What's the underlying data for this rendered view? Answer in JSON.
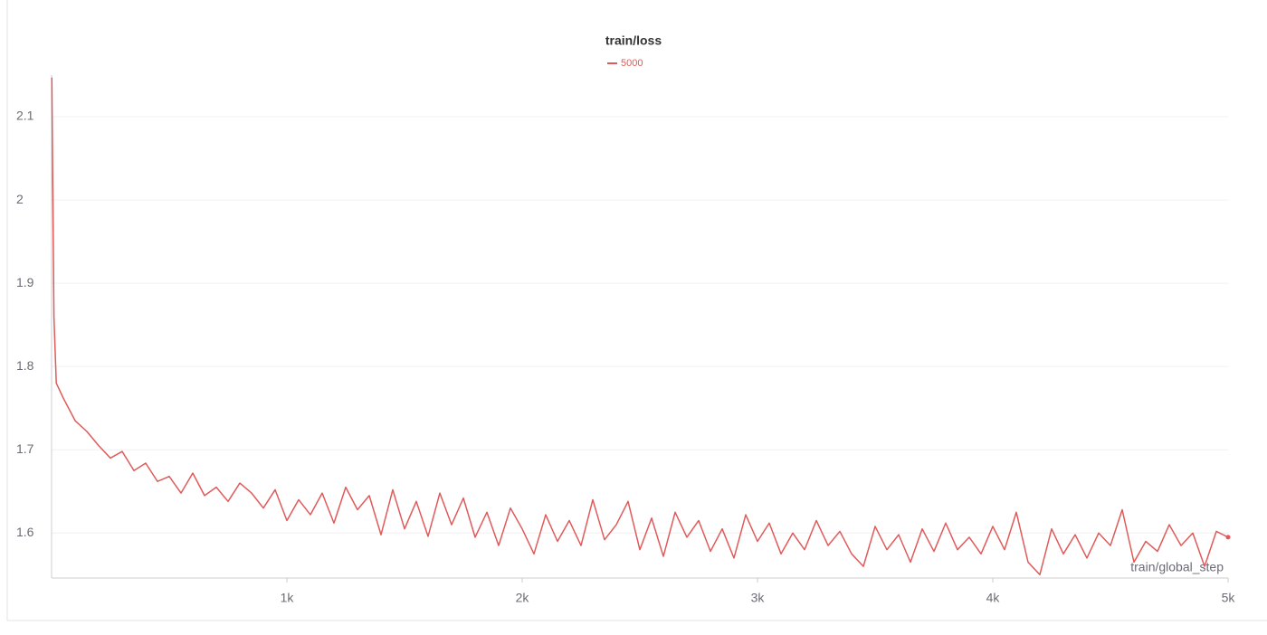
{
  "chart_data": {
    "type": "line",
    "title": "train/loss",
    "x_label": "train/global_step",
    "x": [
      1,
      10,
      20,
      50,
      100,
      150,
      200,
      250,
      300,
      350,
      400,
      450,
      500,
      550,
      600,
      650,
      700,
      750,
      800,
      850,
      900,
      950,
      1000,
      1050,
      1100,
      1150,
      1200,
      1250,
      1300,
      1350,
      1400,
      1450,
      1500,
      1550,
      1600,
      1650,
      1700,
      1750,
      1800,
      1850,
      1900,
      1950,
      2000,
      2050,
      2100,
      2150,
      2200,
      2250,
      2300,
      2350,
      2400,
      2450,
      2500,
      2550,
      2600,
      2650,
      2700,
      2750,
      2800,
      2850,
      2900,
      2950,
      3000,
      3050,
      3100,
      3150,
      3200,
      3250,
      3300,
      3350,
      3400,
      3450,
      3500,
      3550,
      3600,
      3650,
      3700,
      3750,
      3800,
      3850,
      3900,
      3950,
      4000,
      4050,
      4100,
      4150,
      4200,
      4250,
      4300,
      4350,
      4400,
      4450,
      4500,
      4550,
      4600,
      4650,
      4700,
      4750,
      4800,
      4850,
      4900,
      4950,
      5000
    ],
    "series": [
      {
        "name": "5000",
        "color": "#e05a5a",
        "values": [
          2.147,
          1.86,
          1.78,
          1.762,
          1.735,
          1.722,
          1.705,
          1.69,
          1.698,
          1.675,
          1.684,
          1.662,
          1.668,
          1.648,
          1.672,
          1.645,
          1.655,
          1.638,
          1.66,
          1.648,
          1.63,
          1.652,
          1.615,
          1.64,
          1.622,
          1.648,
          1.612,
          1.655,
          1.628,
          1.645,
          1.598,
          1.652,
          1.605,
          1.638,
          1.596,
          1.648,
          1.61,
          1.642,
          1.595,
          1.625,
          1.585,
          1.63,
          1.605,
          1.575,
          1.622,
          1.59,
          1.615,
          1.585,
          1.64,
          1.592,
          1.61,
          1.638,
          1.58,
          1.618,
          1.572,
          1.625,
          1.595,
          1.615,
          1.578,
          1.605,
          1.57,
          1.622,
          1.59,
          1.612,
          1.575,
          1.6,
          1.58,
          1.615,
          1.585,
          1.602,
          1.575,
          1.56,
          1.608,
          1.58,
          1.598,
          1.565,
          1.605,
          1.578,
          1.612,
          1.58,
          1.595,
          1.575,
          1.608,
          1.58,
          1.625,
          1.565,
          1.55,
          1.605,
          1.575,
          1.598,
          1.57,
          1.6,
          1.585,
          1.628,
          1.565,
          1.59,
          1.578,
          1.61,
          1.585,
          1.6,
          1.56,
          1.602,
          1.595
        ]
      }
    ],
    "xlim": [
      0,
      5000
    ],
    "xticks": [
      {
        "value": 1000,
        "label": "1k"
      },
      {
        "value": 2000,
        "label": "2k"
      },
      {
        "value": 3000,
        "label": "3k"
      },
      {
        "value": 4000,
        "label": "4k"
      },
      {
        "value": 5000,
        "label": "5k"
      }
    ],
    "ylim": [
      1.546,
      2.15
    ],
    "yticks": [
      1.6,
      1.7,
      1.8,
      1.9,
      2,
      2.1
    ],
    "grid": true
  }
}
